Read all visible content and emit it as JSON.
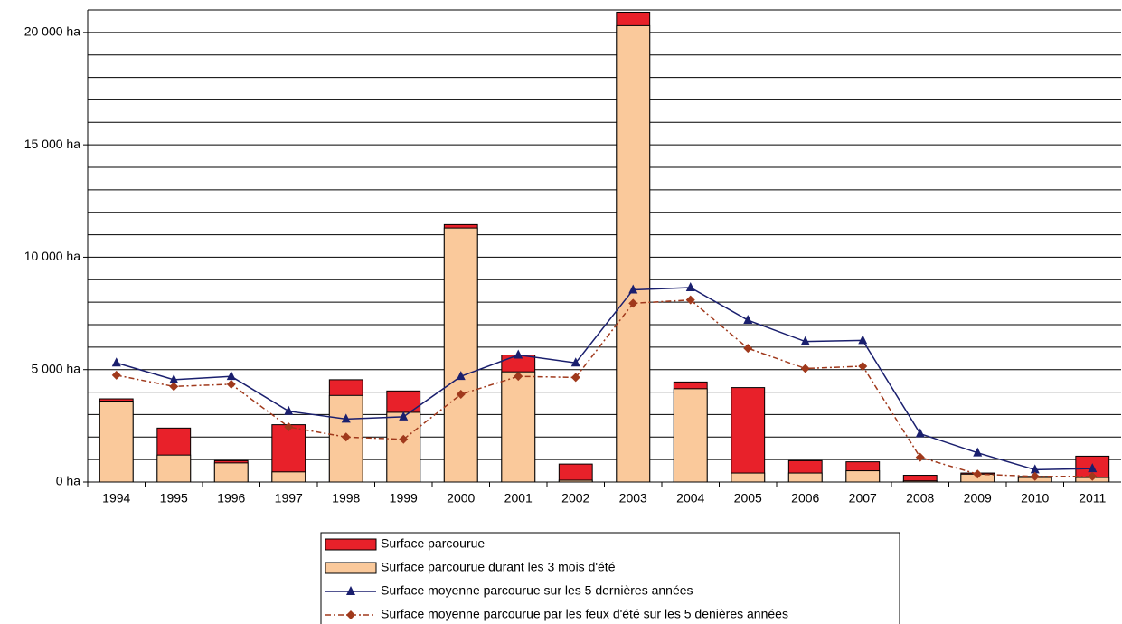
{
  "chart_data": {
    "type": "bar",
    "categories": [
      "1994",
      "1995",
      "1996",
      "1997",
      "1998",
      "1999",
      "2000",
      "2001",
      "2002",
      "2003",
      "2004",
      "2005",
      "2006",
      "2007",
      "2008",
      "2009",
      "2010",
      "2011"
    ],
    "series": [
      {
        "name": "Surface parcourue",
        "type": "bar",
        "color": "#e8212a",
        "values": [
          3700,
          2400,
          950,
          2550,
          4550,
          4050,
          11450,
          5650,
          800,
          20900,
          4450,
          4200,
          950,
          900,
          300,
          400,
          250,
          1150
        ]
      },
      {
        "name": "Surface parcourue durant les 3 mois d'été",
        "type": "bar",
        "color": "#fac99b",
        "values": [
          3600,
          1200,
          850,
          450,
          3850,
          3100,
          11300,
          4900,
          80,
          20300,
          4150,
          400,
          400,
          500,
          50,
          350,
          200,
          200
        ]
      },
      {
        "name": "Surface moyenne parcourue sur les 5 dernières années",
        "type": "line",
        "color": "#1a1f6e",
        "marker": "triangle",
        "dashed": false,
        "values": [
          5300,
          4550,
          4700,
          3150,
          2800,
          2900,
          4700,
          5650,
          5300,
          8550,
          8650,
          7200,
          6250,
          6300,
          2150,
          1300,
          550,
          600
        ]
      },
      {
        "name": "Surface moyenne parcourue par les feux  d'été sur les 5 denières années",
        "type": "line",
        "color": "#a0391c",
        "marker": "diamond",
        "dashed": true,
        "values": [
          4750,
          4250,
          4350,
          2450,
          2000,
          1900,
          3900,
          4700,
          4650,
          7950,
          8100,
          5950,
          5050,
          5150,
          1100,
          350,
          250,
          250
        ]
      }
    ],
    "ylim": [
      0,
      21000
    ],
    "yticks": [
      {
        "value": 0,
        "label": "0 ha"
      },
      {
        "value": 5000,
        "label": "5 000 ha"
      },
      {
        "value": 10000,
        "label": "10 000 ha"
      },
      {
        "value": 15000,
        "label": "15 000 ha"
      },
      {
        "value": 20000,
        "label": "20 000 ha"
      }
    ],
    "minor_grid": [
      1000,
      2000,
      3000,
      4000,
      6000,
      7000,
      8000,
      9000,
      11000,
      12000,
      13000,
      14000,
      16000,
      17000,
      18000,
      19000,
      21000
    ],
    "grid": true,
    "legend": "bottom"
  }
}
